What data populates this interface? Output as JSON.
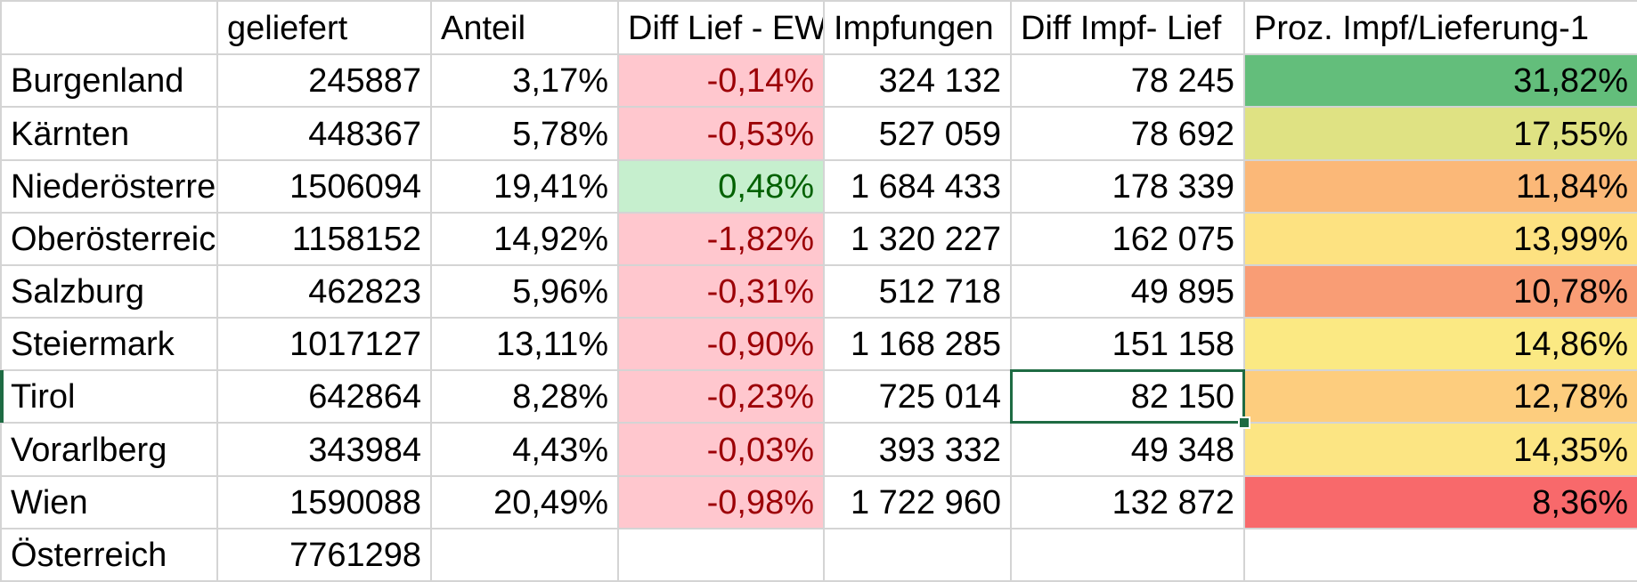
{
  "colors": {
    "neg_bg": "#ffc7ce",
    "neg_fg": "#9c0006",
    "pos_bg": "#c6efce",
    "pos_fg": "#006100",
    "selection": "#1e6b43"
  },
  "headers": [
    "",
    "geliefert",
    "Anteil",
    "Diff Lief - EW",
    "Impfungen",
    "Diff Impf- Lief",
    "Proz. Impf/Lieferung-1"
  ],
  "rows": [
    {
      "region": "Burgenland",
      "geliefert": "245887",
      "anteil": "3,17%",
      "diff_lief_ew": "-0,14%",
      "diff_sign": "neg",
      "impfungen": "324 132",
      "diff_impf_lief": "78 245",
      "proz": "31,82%",
      "proz_color": "#63be7b"
    },
    {
      "region": "Kärnten",
      "geliefert": "448367",
      "anteil": "5,78%",
      "diff_lief_ew": "-0,53%",
      "diff_sign": "neg",
      "impfungen": "527 059",
      "diff_impf_lief": "78 692",
      "proz": "17,55%",
      "proz_color": "#dfe283"
    },
    {
      "region": "Niederösterreich",
      "geliefert": "1506094",
      "anteil": "19,41%",
      "diff_lief_ew": "0,48%",
      "diff_sign": "pos",
      "impfungen": "1 684 433",
      "diff_impf_lief": "178 339",
      "proz": "11,84%",
      "proz_color": "#fbb878"
    },
    {
      "region": "Oberösterreich",
      "geliefert": "1158152",
      "anteil": "14,92%",
      "diff_lief_ew": "-1,82%",
      "diff_sign": "neg",
      "impfungen": "1 320 227",
      "diff_impf_lief": "162 075",
      "proz": "13,99%",
      "proz_color": "#fde281"
    },
    {
      "region": "Salzburg",
      "geliefert": "462823",
      "anteil": "5,96%",
      "diff_lief_ew": "-0,31%",
      "diff_sign": "neg",
      "impfungen": "512 718",
      "diff_impf_lief": "49 895",
      "proz": "10,78%",
      "proz_color": "#f99d75"
    },
    {
      "region": "Steiermark",
      "geliefert": "1017127",
      "anteil": "13,11%",
      "diff_lief_ew": "-0,90%",
      "diff_sign": "neg",
      "impfungen": "1 168 285",
      "diff_impf_lief": "151 158",
      "proz": "14,86%",
      "proz_color": "#fbe983"
    },
    {
      "region": "Tirol",
      "geliefert": "642864",
      "anteil": "8,28%",
      "diff_lief_ew": "-0,23%",
      "diff_sign": "neg",
      "impfungen": "725 014",
      "diff_impf_lief": "82 150",
      "proz": "12,78%",
      "proz_color": "#fdcd7e"
    },
    {
      "region": "Vorarlberg",
      "geliefert": "343984",
      "anteil": "4,43%",
      "diff_lief_ew": "-0,03%",
      "diff_sign": "neg",
      "impfungen": "393 332",
      "diff_impf_lief": "49 348",
      "proz": "14,35%",
      "proz_color": "#fce583"
    },
    {
      "region": "Wien",
      "geliefert": "1590088",
      "anteil": "20,49%",
      "diff_lief_ew": "-0,98%",
      "diff_sign": "neg",
      "impfungen": "1 722 960",
      "diff_impf_lief": "132 872",
      "proz": "8,36%",
      "proz_color": "#f8696b"
    },
    {
      "region": "Österreich",
      "geliefert": "7761298",
      "anteil": "",
      "diff_lief_ew": "",
      "diff_sign": "none",
      "impfungen": "",
      "diff_impf_lief": "",
      "proz": "",
      "proz_color": ""
    }
  ],
  "active_cell": {
    "row": 6,
    "column": "diff_impf_lief"
  }
}
